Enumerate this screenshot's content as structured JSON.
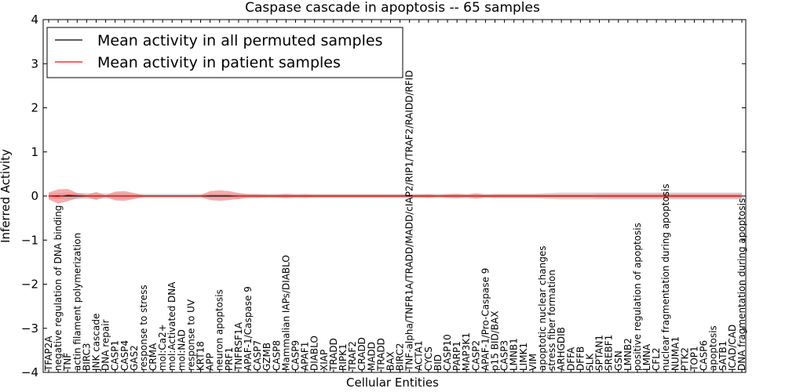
{
  "chart_data": {
    "type": "line",
    "title": "Caspase cascade in apoptosis -- 65 samples",
    "xlabel": "Cellular Entities",
    "ylabel": "Inferred Activity",
    "ylim": [
      -4,
      4
    ],
    "yticks": [
      4,
      3,
      2,
      1,
      0,
      -1,
      -2,
      -3,
      -4
    ],
    "ytick_labels": [
      "4",
      "3",
      "2",
      "1",
      "0",
      "−1",
      "−2",
      "−3",
      "−4"
    ],
    "grid": false,
    "legend_position": "top-left",
    "categories": [
      "TFAP2A",
      "negative regulation of DNA binding",
      "TNF",
      "actin filament polymerization",
      "BIRC3",
      "JNK cascade",
      "DNA repair",
      "CASP1",
      "CASP4",
      "GAS2",
      "response to stress",
      "CRMA",
      "mol:Ca2+",
      "mol:Activated DNA",
      "mol:NAD",
      "response to UV",
      "KRT18",
      "APP",
      "neuron apoptosis",
      "PRF1",
      "TNFRSF1A",
      "APAF-1/Caspase 9",
      "CASP7",
      "GZMB",
      "CASP8",
      "Mammalian IAPs/DIABLO",
      "CASP9",
      "APAF1",
      "DIABLO",
      "XIAP",
      "TRADD",
      "RIPK1",
      "TRAF2",
      "CRADD",
      "MADD",
      "TRADD",
      "BAX",
      "BIRC2",
      "TNF-alpha/TNFR1A/TRADD/MADD/cIAP2/RIP1/TRAF2/RAIDD/RFID",
      "ACTA1",
      "CYCS",
      "BID",
      "CASP10",
      "PARP1",
      "MAP3K1",
      "CASP2",
      "APAF-1/Pro-Caspase 9",
      "p15 BID/BAX",
      "CASP3",
      "LMNB1",
      "LIMK1",
      "VIM",
      "apoptotic nuclear changes",
      "stress fiber formation",
      "ARHGDIB",
      "DFFA",
      "DFFB",
      "SLK",
      "SPTAN1",
      "SREBF1",
      "GSN",
      "LMNB2",
      "positive regulation of apoptosis",
      "LMNA",
      "CFL2",
      "nuclear fragmentation during apoptosis",
      "NUMA1",
      "PTK2",
      "TOP1",
      "CASP6",
      "apoptosis",
      "SATB1",
      "ICAD/CAD",
      "DNA fragmentation during apoptosis"
    ],
    "series": [
      {
        "name": "Mean activity in all permuted samples",
        "color": "#000000",
        "values": [
          0,
          0,
          0,
          0,
          0,
          0,
          0,
          0,
          0,
          0,
          0,
          0,
          0,
          0,
          0,
          0,
          0,
          0,
          0,
          0,
          0,
          0,
          0,
          0,
          0,
          0,
          0,
          0,
          0,
          0,
          0,
          0,
          0,
          0,
          0,
          0,
          0,
          0,
          0,
          0,
          0,
          0,
          0,
          0,
          0,
          0,
          0,
          0,
          0,
          0,
          0,
          0,
          0,
          0,
          0,
          0,
          0,
          0,
          0,
          0,
          0,
          0,
          0,
          0,
          0,
          0,
          0,
          0,
          0,
          0,
          0,
          0,
          0,
          0
        ],
        "band_half_width": [
          0.06,
          0.07,
          0.08,
          0.07,
          0.07,
          0.06,
          0.06,
          0.06,
          0.06,
          0.05,
          0.05,
          0.05,
          0.05,
          0.05,
          0.05,
          0.05,
          0.05,
          0.05,
          0.05,
          0.05,
          0.05,
          0.05,
          0.05,
          0.05,
          0.05,
          0.05,
          0.05,
          0.05,
          0.05,
          0.05,
          0.05,
          0.05,
          0.05,
          0.05,
          0.05,
          0.05,
          0.05,
          0.05,
          0.05,
          0.05,
          0.05,
          0.05,
          0.05,
          0.05,
          0.05,
          0.05,
          0.05,
          0.05,
          0.05,
          0.05,
          0.05,
          0.05,
          0.06,
          0.07,
          0.08,
          0.08,
          0.08,
          0.08,
          0.08,
          0.08,
          0.08,
          0.08,
          0.08,
          0.08,
          0.08,
          0.08,
          0.08,
          0.08,
          0.08,
          0.08,
          0.08,
          0.08,
          0.08,
          0.08
        ],
        "band_color": "#bbbbbb"
      },
      {
        "name": "Mean activity in patient samples",
        "color": "#ff0000",
        "values": [
          0,
          -0.01,
          0.02,
          0.01,
          0,
          0,
          0,
          0,
          0,
          0,
          0,
          0,
          0,
          0,
          0,
          0,
          0,
          0.01,
          0.01,
          0.01,
          0,
          0,
          0,
          0,
          0,
          0,
          0,
          0,
          0,
          0,
          0,
          0,
          0,
          0,
          0,
          0,
          0,
          0,
          0,
          0,
          0,
          0,
          0,
          0,
          0,
          0,
          0,
          0,
          0,
          0,
          0,
          0,
          0,
          0,
          0,
          0,
          0,
          0,
          0,
          0,
          0,
          0,
          0,
          0,
          0,
          0,
          0,
          0,
          0,
          0,
          0,
          0,
          0,
          0
        ],
        "band_half_width": [
          0.08,
          0.16,
          0.14,
          0.06,
          0.03,
          0.09,
          0.02,
          0.1,
          0.11,
          0.07,
          0.02,
          0.02,
          0.02,
          0.02,
          0.02,
          0.02,
          0.02,
          0.1,
          0.12,
          0.1,
          0.07,
          0.04,
          0.04,
          0.03,
          0.03,
          0.05,
          0.03,
          0.04,
          0.03,
          0.03,
          0.03,
          0.03,
          0.03,
          0.03,
          0.03,
          0.03,
          0.03,
          0.03,
          0.03,
          0.03,
          0.04,
          0.02,
          0.04,
          0.05,
          0.03,
          0.06,
          0.03,
          0.04,
          0.04,
          0.04,
          0.04,
          0.04,
          0.04,
          0.04,
          0.04,
          0.04,
          0.04,
          0.04,
          0.05,
          0.05,
          0.05,
          0.05,
          0.05,
          0.05,
          0.05,
          0.05,
          0.05,
          0.05,
          0.05,
          0.05,
          0.05,
          0.05,
          0.05,
          0.05
        ],
        "band_color": "#f08080"
      }
    ]
  }
}
